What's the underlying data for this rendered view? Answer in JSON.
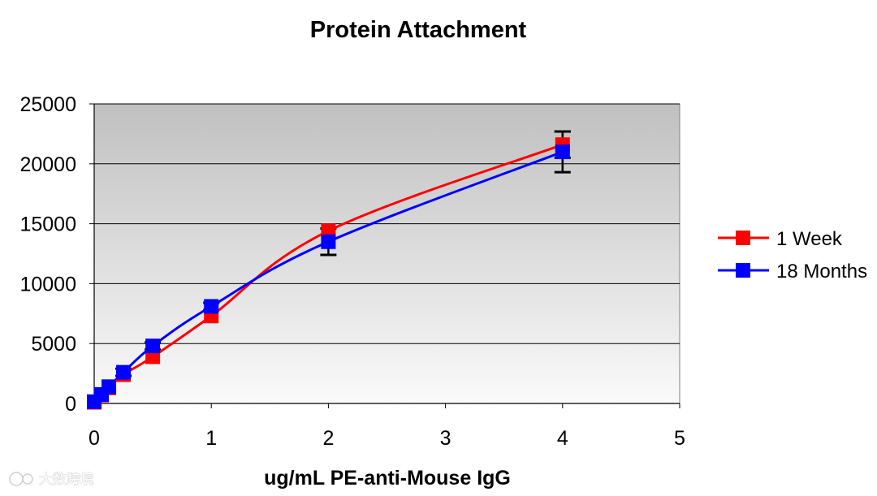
{
  "chart_data": {
    "type": "line",
    "title": "Protein Attachment",
    "xlabel": "ug/mL PE-anti-Mouse IgG",
    "ylabel": "",
    "xlim": [
      0,
      5
    ],
    "ylim": [
      0,
      25000
    ],
    "x_ticks": [
      "0",
      "1",
      "2",
      "3",
      "4",
      "5"
    ],
    "y_ticks": [
      "0",
      "5000",
      "10000",
      "15000",
      "20000",
      "25000"
    ],
    "grid": "horizontal",
    "legend_position": "right",
    "series": [
      {
        "name": "1 Week",
        "color": "#ff0000",
        "x": [
          0,
          0.0625,
          0.125,
          0.25,
          0.5,
          1,
          2,
          4
        ],
        "y": [
          100,
          700,
          1300,
          2400,
          3900,
          7300,
          14400,
          21600
        ],
        "error": [
          0,
          0,
          0,
          0,
          0,
          0,
          0,
          1100
        ]
      },
      {
        "name": "18 Months",
        "color": "#0000ff",
        "x": [
          0,
          0.0625,
          0.125,
          0.25,
          0.5,
          1,
          2,
          4
        ],
        "y": [
          150,
          750,
          1400,
          2600,
          4800,
          8100,
          13500,
          21000
        ],
        "error": [
          0,
          0,
          0,
          300,
          300,
          300,
          1100,
          1700
        ]
      }
    ]
  },
  "watermark": {
    "text": "大数跨境"
  }
}
